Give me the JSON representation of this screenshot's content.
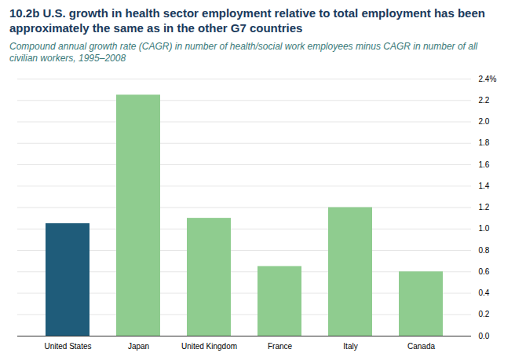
{
  "chart_data": {
    "type": "bar",
    "title": "10.2b U.S. growth in health sector employment relative to total employment has been approximately the same as in the other G7 countries",
    "subtitle": "Compound annual growth rate (CAGR) in number of health/social work employees minus CAGR in number of all civilian workers, 1995–2008",
    "categories": [
      "United States",
      "Japan",
      "United Kingdom",
      "France",
      "Italy",
      "Canada"
    ],
    "values": [
      1.05,
      2.25,
      1.1,
      0.65,
      1.2,
      0.6
    ],
    "colors": [
      "#1f5c7a",
      "#8fcc8f",
      "#8fcc8f",
      "#8fcc8f",
      "#8fcc8f",
      "#8fcc8f"
    ],
    "ylim": [
      0,
      2.4
    ],
    "yticks": [
      {
        "value": 0,
        "label": "0.0"
      },
      0.2,
      0.4,
      0.6,
      0.8,
      {
        "value": 1,
        "label": "1.0"
      },
      1.2,
      1.4,
      1.6,
      1.8,
      {
        "value": 2,
        "label": "2.0"
      },
      2.2,
      {
        "value": 2.4,
        "label": "2.4%"
      }
    ],
    "grid": true
  }
}
